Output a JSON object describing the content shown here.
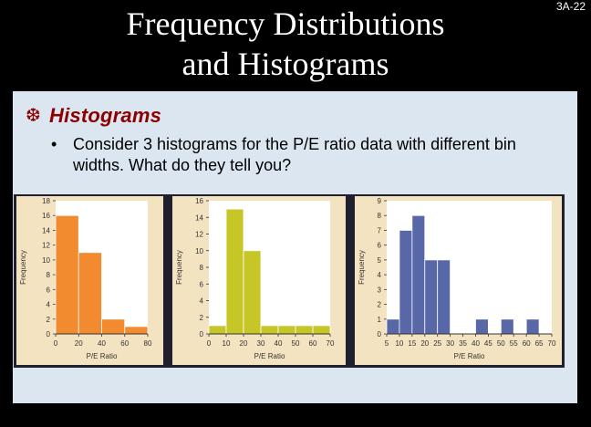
{
  "slide": {
    "title_line1": "Frequency Distributions",
    "title_line2": "and Histograms",
    "number": "3A-22",
    "heading": "Histograms",
    "bullet_text": "Consider 3 histograms for the P/E ratio data with different bin widths.  What do they tell you?",
    "bullet_icon": "snowflake-icon"
  },
  "colors": {
    "background": "#000000",
    "content_bg": "#dce6f0",
    "heading": "#8b0000",
    "chart_frame": "#f4e3c0"
  },
  "chart_data": [
    {
      "type": "bar",
      "color": "#f28a30",
      "categories": [
        "0-20",
        "20-40",
        "40-60",
        "60-80"
      ],
      "values": [
        16,
        11,
        2,
        1
      ],
      "x_ticks": [
        "0",
        "20",
        "40",
        "60",
        "80"
      ],
      "y_ticks": [
        "0",
        "2",
        "4",
        "6",
        "8",
        "10",
        "12",
        "14",
        "16",
        "18"
      ],
      "xlabel": "P/E Ratio",
      "ylabel": "Frequency",
      "ylim": [
        0,
        18
      ]
    },
    {
      "type": "bar",
      "color": "#c6c627",
      "categories": [
        "0-10",
        "10-20",
        "20-30",
        "30-40",
        "40-50",
        "50-60",
        "60-70"
      ],
      "values": [
        1,
        15,
        10,
        1,
        1,
        1,
        1
      ],
      "x_ticks": [
        "0",
        "10",
        "20",
        "30",
        "40",
        "50",
        "60",
        "70"
      ],
      "y_ticks": [
        "0",
        "2",
        "4",
        "6",
        "8",
        "10",
        "12",
        "14",
        "16"
      ],
      "xlabel": "P/E Ratio",
      "ylabel": "Frequency",
      "ylim": [
        0,
        16
      ]
    },
    {
      "type": "bar",
      "color": "#5867a8",
      "categories": [
        "5-10",
        "10-15",
        "15-20",
        "20-25",
        "25-30",
        "30-35",
        "35-40",
        "40-45",
        "45-50",
        "50-55",
        "55-60",
        "60-65",
        "65-70"
      ],
      "values": [
        1,
        7,
        8,
        5,
        5,
        0,
        0,
        1,
        0,
        1,
        0,
        1,
        0
      ],
      "x_ticks": [
        "5",
        "10",
        "15",
        "20",
        "25",
        "30",
        "35",
        "40",
        "45",
        "50",
        "55",
        "60",
        "65",
        "70"
      ],
      "y_ticks": [
        "0",
        "1",
        "2",
        "3",
        "4",
        "5",
        "6",
        "7",
        "8",
        "9"
      ],
      "xlabel": "P/E Ratio",
      "ylabel": "Frequency",
      "ylim": [
        0,
        9
      ]
    }
  ]
}
